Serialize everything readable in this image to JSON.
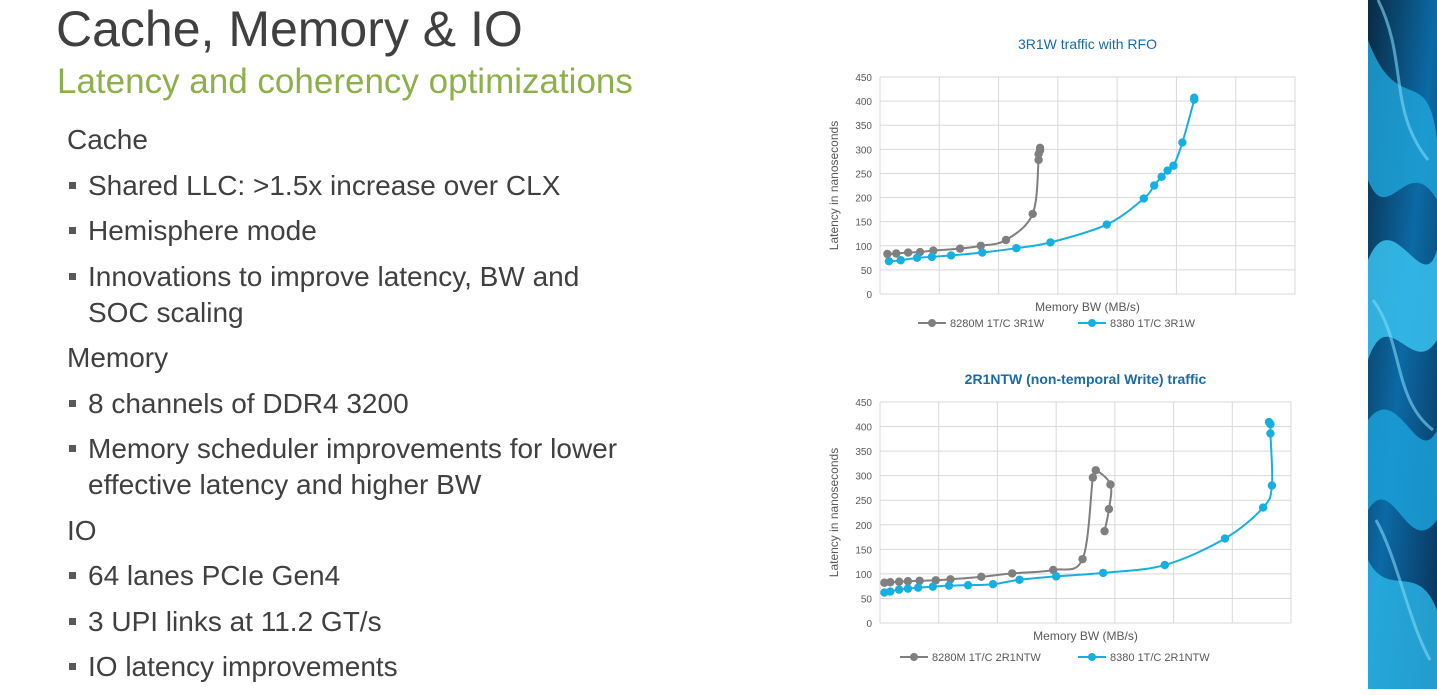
{
  "slide": {
    "title": "Cache, Memory & IO",
    "subtitle": "Latency and coherency optimizations"
  },
  "sections": [
    {
      "heading": "Cache",
      "bullets": [
        [
          "Shared LLC: >1.5x increase over CLX"
        ],
        [
          "Hemisphere mode"
        ],
        [
          "Innovations to improve latency, BW and",
          "SOC scaling"
        ]
      ]
    },
    {
      "heading": "Memory",
      "bullets": [
        [
          "8 channels of DDR4 3200"
        ],
        [
          "Memory scheduler improvements for lower",
          "effective latency and higher BW"
        ]
      ]
    },
    {
      "heading": "IO",
      "bullets": [
        [
          "64 lanes PCIe Gen4"
        ],
        [
          "3 UPI links at 11.2 GT/s"
        ],
        [
          "IO latency improvements"
        ]
      ]
    }
  ],
  "colors": {
    "title": "#404040",
    "subtitle": "#8db04a",
    "chart_title": "#1a6aa8",
    "series_gray": "#7f7f7f",
    "series_blue": "#16b0e0"
  },
  "chart_data": [
    {
      "type": "scatter",
      "title": "3R1W traffic with RFO",
      "xlabel": "Memory BW (MB/s)",
      "ylabel": "Latency in nanoseconds",
      "ylim": [
        0,
        450
      ],
      "yticks": [
        0,
        50,
        100,
        150,
        200,
        250,
        300,
        350,
        400,
        450
      ],
      "xgrid_count": 7,
      "grid": true,
      "legend": "bottom",
      "series": [
        {
          "name": "8280M 1T/C 3R1W",
          "color": "#7f7f7f",
          "points": [
            [
              0.5,
              83
            ],
            [
              1.1,
              84
            ],
            [
              1.9,
              86
            ],
            [
              2.7,
              87
            ],
            [
              3.6,
              90
            ],
            [
              5.4,
              94
            ],
            [
              6.8,
              100
            ],
            [
              8.5,
              112
            ],
            [
              10.3,
              166
            ],
            [
              10.7,
              278
            ],
            [
              10.7,
              290
            ],
            [
              10.8,
              298
            ],
            [
              10.8,
              303
            ]
          ]
        },
        {
          "name": "8380 1T/C 3R1W",
          "color": "#16b0e0",
          "points": [
            [
              0.6,
              68
            ],
            [
              1.4,
              70
            ],
            [
              2.5,
              75
            ],
            [
              3.5,
              77
            ],
            [
              4.8,
              80
            ],
            [
              6.9,
              86
            ],
            [
              9.2,
              95
            ],
            [
              11.5,
              107
            ],
            [
              15.3,
              144
            ],
            [
              17.8,
              198
            ],
            [
              18.5,
              225
            ],
            [
              19.0,
              243
            ],
            [
              19.4,
              256
            ],
            [
              19.8,
              266
            ],
            [
              20.4,
              314
            ],
            [
              21.2,
              403
            ],
            [
              21.2,
              407
            ]
          ]
        }
      ]
    },
    {
      "type": "scatter",
      "title": "2R1NTW (non-temporal Write) traffic",
      "xlabel": "Memory BW (MB/s)",
      "ylabel": "Latency in nanoseconds",
      "ylim": [
        0,
        450
      ],
      "yticks": [
        0,
        50,
        100,
        150,
        200,
        250,
        300,
        350,
        400,
        450
      ],
      "xgrid_count": 7,
      "grid": true,
      "legend": "bottom",
      "series": [
        {
          "name": "8280M 1T/C 2R1NTW",
          "color": "#7f7f7f",
          "points": [
            [
              0.3,
              82
            ],
            [
              0.7,
              83
            ],
            [
              1.3,
              84
            ],
            [
              1.9,
              85
            ],
            [
              2.7,
              86
            ],
            [
              3.8,
              87
            ],
            [
              4.8,
              89
            ],
            [
              6.9,
              94
            ],
            [
              9.0,
              101
            ],
            [
              11.8,
              108
            ],
            [
              13.8,
              130
            ],
            [
              14.5,
              296
            ],
            [
              14.7,
              311
            ],
            [
              15.7,
              282
            ],
            [
              15.6,
              232
            ],
            [
              15.3,
              187
            ]
          ]
        },
        {
          "name": "8380 1T/C 2R1NTW",
          "color": "#16b0e0",
          "points": [
            [
              0.3,
              62
            ],
            [
              0.7,
              64
            ],
            [
              1.3,
              68
            ],
            [
              1.9,
              70
            ],
            [
              2.6,
              72
            ],
            [
              3.6,
              74
            ],
            [
              4.7,
              76
            ],
            [
              6.0,
              77
            ],
            [
              7.7,
              79
            ],
            [
              9.5,
              88
            ],
            [
              12.0,
              95
            ],
            [
              15.2,
              102
            ],
            [
              19.4,
              118
            ],
            [
              23.5,
              172
            ],
            [
              26.1,
              235
            ],
            [
              26.7,
              280
            ],
            [
              26.6,
              386
            ],
            [
              26.6,
              405
            ],
            [
              26.5,
              409
            ]
          ]
        }
      ]
    }
  ]
}
